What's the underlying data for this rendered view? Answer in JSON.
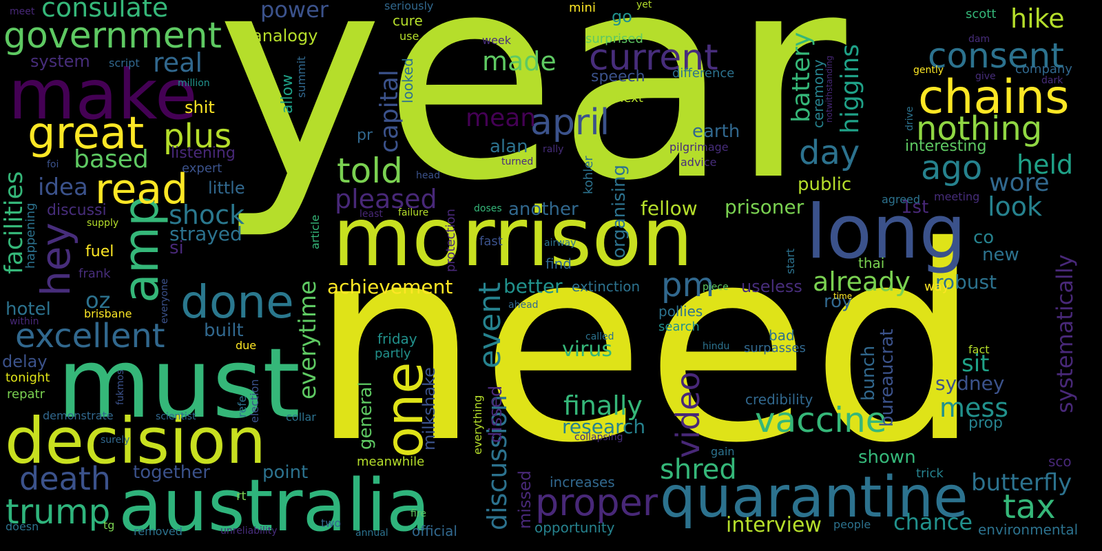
{
  "palette": [
    "#440154",
    "#3b528b",
    "#21918c",
    "#5ec962",
    "#fde725",
    "#35b779",
    "#2c728e",
    "#472d7b",
    "#b5de2b",
    "#482878",
    "#26828e",
    "#90d743"
  ],
  "words": [
    {
      "text": "year",
      "color": "#b5de2b"
    },
    {
      "text": "need",
      "color": "#dfe318"
    },
    {
      "text": "morrison",
      "color": "#c8e020"
    },
    {
      "text": "must",
      "color": "#35b779"
    },
    {
      "text": "australia",
      "color": "#2fb47c"
    },
    {
      "text": "decision",
      "color": "#c8e020"
    },
    {
      "text": "make",
      "color": "#440154"
    },
    {
      "text": "long",
      "color": "#3b528b"
    },
    {
      "text": "quarantine",
      "color": "#2c728e"
    },
    {
      "text": "great",
      "color": "#fde725"
    },
    {
      "text": "amp",
      "color": "#35b779"
    },
    {
      "text": "chains",
      "color": "#fde725"
    },
    {
      "text": "done",
      "color": "#2a788e"
    },
    {
      "text": "one",
      "color": "#dfe318"
    },
    {
      "text": "read",
      "color": "#fde725"
    },
    {
      "text": "hey",
      "color": "#472d7b"
    },
    {
      "text": "government",
      "color": "#5ec962"
    },
    {
      "text": "vaccine",
      "color": "#35b779"
    },
    {
      "text": "nothing",
      "color": "#90d743"
    },
    {
      "text": "consent",
      "color": "#2c728e"
    },
    {
      "text": "current",
      "color": "#472d7b"
    },
    {
      "text": "excellent",
      "color": "#31688e"
    },
    {
      "text": "proper",
      "color": "#482878"
    },
    {
      "text": "plus",
      "color": "#b5de2b"
    },
    {
      "text": "april",
      "color": "#3b528b"
    },
    {
      "text": "trump",
      "color": "#2fb47c"
    },
    {
      "text": "told",
      "color": "#7ad151"
    },
    {
      "text": "death",
      "color": "#3b528b"
    },
    {
      "text": "pm",
      "color": "#31688e"
    },
    {
      "text": "day",
      "color": "#2c728e"
    },
    {
      "text": "ago",
      "color": "#26828e"
    },
    {
      "text": "tax",
      "color": "#35b779"
    },
    {
      "text": "video",
      "color": "#482878"
    },
    {
      "text": "event",
      "color": "#26828e"
    },
    {
      "text": "shred",
      "color": "#35b779"
    },
    {
      "text": "consulate",
      "color": "#35b779"
    },
    {
      "text": "shock",
      "color": "#2a788e"
    },
    {
      "text": "made",
      "color": "#5ec962"
    },
    {
      "text": "already",
      "color": "#7ad151"
    },
    {
      "text": "pleased",
      "color": "#482878"
    },
    {
      "text": "finally",
      "color": "#35b779"
    },
    {
      "text": "hike",
      "color": "#b5de2b"
    },
    {
      "text": "look",
      "color": "#26828e"
    },
    {
      "text": "discussion",
      "color": "#2c728e"
    },
    {
      "text": "mess",
      "color": "#21918c"
    },
    {
      "text": "butterfly",
      "color": "#2c728e"
    },
    {
      "text": "real",
      "color": "#31688e"
    },
    {
      "text": "held",
      "color": "#1fa187"
    },
    {
      "text": "wore",
      "color": "#31688e"
    },
    {
      "text": "chance",
      "color": "#21918c"
    },
    {
      "text": "facilities",
      "color": "#35b779"
    },
    {
      "text": "battery",
      "color": "#35b779"
    },
    {
      "text": "higgins",
      "color": "#1fa187"
    },
    {
      "text": "interview",
      "color": "#b5de2b"
    },
    {
      "text": "based",
      "color": "#5ec962"
    },
    {
      "text": "capital",
      "color": "#3b528b"
    },
    {
      "text": "idea",
      "color": "#3b528b"
    },
    {
      "text": "systematically",
      "color": "#482878"
    },
    {
      "text": "mean",
      "color": "#440154"
    },
    {
      "text": "everytime",
      "color": "#5ec962"
    },
    {
      "text": "research",
      "color": "#26828e"
    },
    {
      "text": "sit",
      "color": "#1fa187"
    },
    {
      "text": "power",
      "color": "#3b528b"
    },
    {
      "text": "oz",
      "color": "#2c728e"
    },
    {
      "text": "strayed",
      "color": "#2c728e"
    },
    {
      "text": "achievement",
      "color": "#fde725"
    },
    {
      "text": "virus",
      "color": "#35b779"
    },
    {
      "text": "robust",
      "color": "#2c728e"
    },
    {
      "text": "sydney",
      "color": "#3b528b"
    },
    {
      "text": "prisoner",
      "color": "#7ad151"
    },
    {
      "text": "fellow",
      "color": "#b5de2b"
    },
    {
      "text": "together",
      "color": "#3b528b"
    },
    {
      "text": "another",
      "color": "#31688e"
    },
    {
      "text": "alan",
      "color": "#2c728e"
    },
    {
      "text": "better",
      "color": "#21918c"
    },
    {
      "text": "point",
      "color": "#2c728e"
    },
    {
      "text": "general",
      "color": "#5ec962"
    },
    {
      "text": "milkshake",
      "color": "#3b528b"
    },
    {
      "text": "dissed",
      "color": "#482878"
    },
    {
      "text": "missed",
      "color": "#482878"
    },
    {
      "text": "bunch",
      "color": "#31688e"
    },
    {
      "text": "bureaucrat",
      "color": "#3b528b"
    },
    {
      "text": "prop",
      "color": "#26828e"
    },
    {
      "text": "hotel",
      "color": "#2c728e"
    },
    {
      "text": "new",
      "color": "#2c728e"
    },
    {
      "text": "co",
      "color": "#26828e"
    },
    {
      "text": "earth",
      "color": "#31688e"
    },
    {
      "text": "public",
      "color": "#b5de2b"
    },
    {
      "text": "shown",
      "color": "#35b779"
    },
    {
      "text": "organising",
      "color": "#2c728e"
    },
    {
      "text": "roy",
      "color": "#31688e"
    },
    {
      "text": "useless",
      "color": "#472d7b"
    },
    {
      "text": "little",
      "color": "#31688e"
    },
    {
      "text": "shit",
      "color": "#fde725"
    },
    {
      "text": "system",
      "color": "#472d7b"
    },
    {
      "text": "analogy",
      "color": "#b5de2b"
    },
    {
      "text": "delay",
      "color": "#3b528b"
    },
    {
      "text": "ceremony",
      "color": "#26828e"
    },
    {
      "text": "environmental",
      "color": "#2c728e"
    },
    {
      "text": "1st",
      "color": "#482878"
    },
    {
      "text": "built",
      "color": "#31688e"
    },
    {
      "text": "discussi",
      "color": "#472d7b"
    },
    {
      "text": "extinction",
      "color": "#2c728e"
    },
    {
      "text": "pollies",
      "color": "#2c728e"
    },
    {
      "text": "credibility",
      "color": "#31688e"
    },
    {
      "text": "opportunity",
      "color": "#26828e"
    },
    {
      "text": "official",
      "color": "#31688e"
    },
    {
      "text": "increases",
      "color": "#31688e"
    },
    {
      "text": "thai",
      "color": "#7ad151"
    },
    {
      "text": "fuel",
      "color": "#fde725"
    },
    {
      "text": "listening",
      "color": "#482878"
    },
    {
      "text": "interesting",
      "color": "#5ec962"
    },
    {
      "text": "si",
      "color": "#482878"
    },
    {
      "text": "allow",
      "color": "#1fa187"
    },
    {
      "text": "speech",
      "color": "#3b528b"
    },
    {
      "text": "find",
      "color": "#31688e"
    },
    {
      "text": "bad",
      "color": "#2c728e"
    },
    {
      "text": "search",
      "color": "#21918c"
    },
    {
      "text": "surpasses",
      "color": "#31688e"
    },
    {
      "text": "happening",
      "color": "#2c728e"
    },
    {
      "text": "looked",
      "color": "#2c728e"
    },
    {
      "text": "tonight",
      "color": "#dfe318"
    },
    {
      "text": "repatr",
      "color": "#7ad151"
    },
    {
      "text": "sco",
      "color": "#482878"
    },
    {
      "text": "pr",
      "color": "#31688e"
    },
    {
      "text": "go",
      "color": "#21918c"
    },
    {
      "text": "frank",
      "color": "#472d7b"
    },
    {
      "text": "brisbane",
      "color": "#fde725"
    },
    {
      "text": "demonstrate",
      "color": "#31688e"
    },
    {
      "text": "company",
      "color": "#31688e"
    },
    {
      "text": "protection",
      "color": "#482878"
    },
    {
      "text": "kohler",
      "color": "#2c728e"
    },
    {
      "text": "scott",
      "color": "#35b779"
    },
    {
      "text": "trick",
      "color": "#26828e"
    },
    {
      "text": "friday",
      "color": "#21918c"
    },
    {
      "text": "partly",
      "color": "#21918c"
    },
    {
      "text": "pilgrimage",
      "color": "#472d7b"
    },
    {
      "text": "meanwhile",
      "color": "#b5de2b"
    },
    {
      "text": "cure",
      "color": "#b5de2b"
    },
    {
      "text": "summit",
      "color": "#31688e"
    },
    {
      "text": "everything",
      "color": "#b5de2b"
    },
    {
      "text": "difference",
      "color": "#2c728e"
    },
    {
      "text": "fast",
      "color": "#3b528b"
    },
    {
      "text": "next",
      "color": "#b5de2b"
    },
    {
      "text": "article",
      "color": "#35b779"
    },
    {
      "text": "mini",
      "color": "#fde725"
    },
    {
      "text": "surprised",
      "color": "#5ec962"
    },
    {
      "text": "way",
      "color": "#fde725"
    },
    {
      "text": "expert",
      "color": "#3b528b"
    },
    {
      "text": "people",
      "color": "#2c728e"
    },
    {
      "text": "rt",
      "color": "#7ad151"
    },
    {
      "text": "due",
      "color": "#fde725"
    },
    {
      "text": "script",
      "color": "#31688e"
    },
    {
      "text": "collar",
      "color": "#2c728e"
    },
    {
      "text": "agreed",
      "color": "#2c728e"
    },
    {
      "text": "meeting",
      "color": "#472d7b"
    },
    {
      "text": "start",
      "color": "#2c728e"
    },
    {
      "text": "election",
      "color": "#3b528b"
    },
    {
      "text": "refe",
      "color": "#2c728e"
    },
    {
      "text": "doses",
      "color": "#35b779"
    },
    {
      "text": "gain",
      "color": "#2c728e"
    },
    {
      "text": "failure",
      "color": "#b5de2b"
    },
    {
      "text": "least",
      "color": "#482878"
    },
    {
      "text": "everyone",
      "color": "#3b528b"
    },
    {
      "text": "advice",
      "color": "#472d7b"
    },
    {
      "text": "removed",
      "color": "#2c728e"
    },
    {
      "text": "two",
      "color": "#31688e"
    },
    {
      "text": "annual",
      "color": "#2c728e"
    },
    {
      "text": "fire",
      "color": "#5ec962"
    },
    {
      "text": "piece",
      "color": "#5ec962"
    },
    {
      "text": "airway",
      "color": "#2c728e"
    },
    {
      "text": "seriously",
      "color": "#31688e"
    },
    {
      "text": "use",
      "color": "#b5de2b"
    },
    {
      "text": "week",
      "color": "#472d7b"
    },
    {
      "text": "tg",
      "color": "#7ad151"
    },
    {
      "text": "doesn",
      "color": "#2c728e"
    },
    {
      "text": "collapsing",
      "color": "#472d7b"
    },
    {
      "text": "surely",
      "color": "#31688e"
    },
    {
      "text": "ahead",
      "color": "#31688e"
    },
    {
      "text": "called",
      "color": "#2c728e"
    },
    {
      "text": "head",
      "color": "#3b528b"
    },
    {
      "text": "dam",
      "color": "#472d7b"
    },
    {
      "text": "dark",
      "color": "#472d7b"
    },
    {
      "text": "give",
      "color": "#472d7b"
    },
    {
      "text": "gently",
      "color": "#fde725"
    },
    {
      "text": "notwithstanding",
      "color": "#482878"
    },
    {
      "text": "drive",
      "color": "#2c728e"
    },
    {
      "text": "yet",
      "color": "#b5de2b"
    },
    {
      "text": "meet",
      "color": "#482878"
    },
    {
      "text": "million",
      "color": "#21918c"
    },
    {
      "text": "foi",
      "color": "#3b528b"
    },
    {
      "text": "supply",
      "color": "#b5de2b"
    },
    {
      "text": "within",
      "color": "#482878"
    },
    {
      "text": "fukmos",
      "color": "#3b528b"
    },
    {
      "text": "scientist",
      "color": "#31688e"
    },
    {
      "text": "rally",
      "color": "#472d7b"
    },
    {
      "text": "turned",
      "color": "#472d7b"
    },
    {
      "text": "hindu",
      "color": "#2c728e"
    },
    {
      "text": "fact",
      "color": "#b5de2b"
    },
    {
      "text": "time",
      "color": "#fde725"
    },
    {
      "text": "unreliability",
      "color": "#472d7b"
    }
  ]
}
